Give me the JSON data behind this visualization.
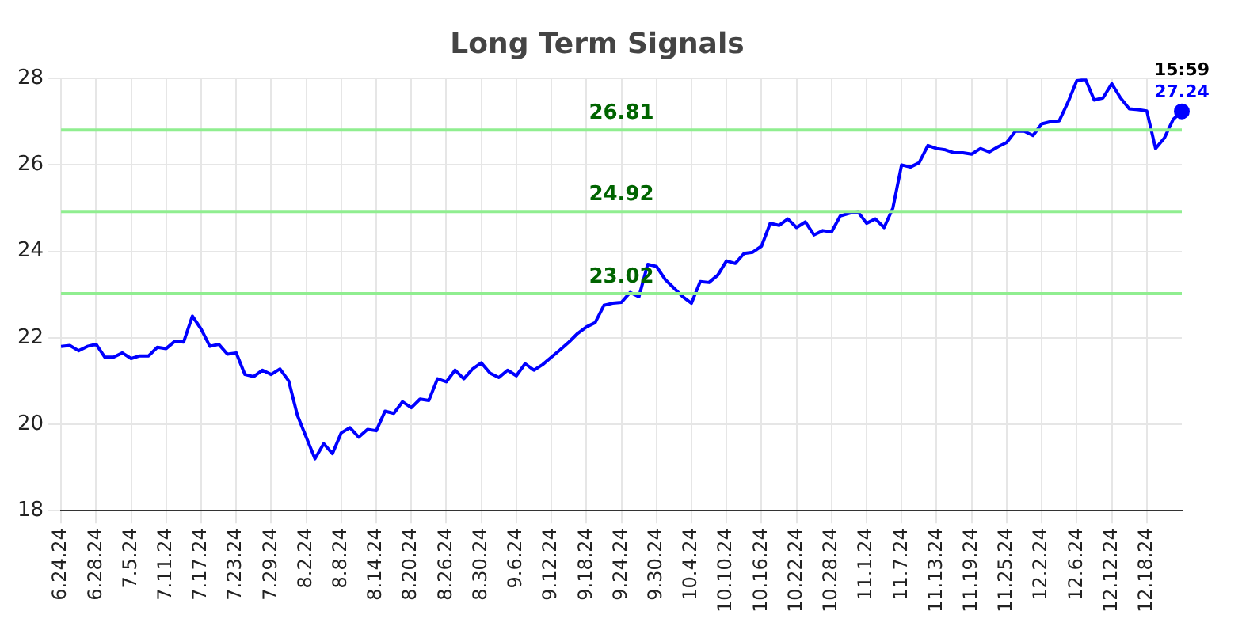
{
  "chart_data": {
    "type": "line",
    "title": "Long Term Signals",
    "categories": [
      "6.24.24",
      null,
      null,
      null,
      "6.28.24",
      null,
      null,
      null,
      "7.5.24",
      null,
      null,
      null,
      "7.11.24",
      null,
      null,
      null,
      "7.17.24",
      null,
      null,
      null,
      "7.23.24",
      null,
      null,
      null,
      "7.29.24",
      null,
      null,
      null,
      "8.2.24",
      null,
      null,
      null,
      "8.8.24",
      null,
      null,
      null,
      "8.14.24",
      null,
      null,
      null,
      "8.20.24",
      null,
      null,
      null,
      "8.26.24",
      null,
      null,
      null,
      "8.30.24",
      null,
      null,
      null,
      "9.6.24",
      null,
      null,
      null,
      "9.12.24",
      null,
      null,
      null,
      "9.18.24",
      null,
      null,
      null,
      "9.24.24",
      null,
      null,
      null,
      "9.30.24",
      null,
      null,
      null,
      "10.4.24",
      null,
      null,
      null,
      "10.10.24",
      null,
      null,
      null,
      "10.16.24",
      null,
      null,
      null,
      "10.22.24",
      null,
      null,
      null,
      "10.28.24",
      null,
      null,
      null,
      "11.1.24",
      null,
      null,
      null,
      "11.7.24",
      null,
      null,
      null,
      "11.13.24",
      null,
      null,
      null,
      "11.19.24",
      null,
      null,
      null,
      "11.25.24",
      null,
      null,
      null,
      "12.2.24",
      null,
      null,
      null,
      "12.6.24",
      null,
      null,
      null,
      "12.12.24",
      null,
      null,
      null,
      "12.18.24",
      null,
      null,
      null,
      null
    ],
    "series": [
      {
        "color": "#0000ff",
        "values": [
          21.8,
          21.82,
          21.7,
          21.8,
          21.85,
          21.55,
          21.55,
          21.65,
          21.52,
          21.58,
          21.58,
          21.78,
          21.75,
          21.92,
          21.9,
          22.5,
          22.2,
          21.8,
          21.85,
          21.62,
          21.65,
          21.15,
          21.1,
          21.25,
          21.15,
          21.28,
          21.0,
          20.2,
          19.7,
          19.2,
          19.55,
          19.32,
          19.8,
          19.92,
          19.7,
          19.88,
          19.85,
          20.3,
          20.25,
          20.52,
          20.38,
          20.58,
          20.55,
          21.05,
          20.98,
          21.25,
          21.05,
          21.28,
          21.42,
          21.18,
          21.08,
          21.25,
          21.12,
          21.4,
          21.25,
          21.38,
          21.55,
          21.72,
          21.9,
          22.1,
          22.25,
          22.35,
          22.75,
          22.8,
          22.82,
          23.05,
          22.95,
          23.7,
          23.65,
          23.35,
          23.15,
          22.95,
          22.8,
          23.3,
          23.28,
          23.45,
          23.78,
          23.72,
          23.95,
          23.98,
          24.12,
          24.65,
          24.6,
          24.75,
          24.55,
          24.68,
          24.38,
          24.48,
          24.45,
          24.82,
          24.88,
          24.92,
          24.65,
          24.75,
          24.55,
          25.0,
          26.0,
          25.95,
          26.05,
          26.45,
          26.38,
          26.35,
          26.28,
          26.28,
          26.25,
          26.38,
          26.3,
          26.42,
          26.52,
          26.78,
          26.78,
          26.68,
          26.95,
          27.0,
          27.02,
          27.45,
          27.95,
          27.98,
          27.5,
          27.55,
          27.88,
          27.55,
          27.3,
          27.28,
          27.25,
          26.38,
          26.62,
          27.05,
          27.24
        ],
        "value_labels": [
          null,
          null,
          null,
          null,
          null,
          null,
          null,
          null,
          null,
          null,
          null,
          null,
          null,
          null,
          null,
          null,
          null,
          null,
          null,
          null,
          null,
          null,
          null,
          null,
          null,
          null,
          null,
          null,
          null,
          null,
          null,
          null,
          null,
          null,
          null,
          null,
          null,
          null,
          null,
          null,
          null,
          null,
          null,
          null,
          null,
          null,
          null,
          null,
          null,
          null,
          null,
          null,
          null,
          null,
          null,
          null,
          null,
          null,
          null,
          null,
          null,
          null,
          null,
          null,
          null,
          null,
          null,
          null,
          null,
          null,
          null,
          null,
          null,
          null,
          null,
          null,
          null,
          null,
          null,
          null,
          null,
          null,
          null,
          null,
          null,
          null,
          null,
          null,
          null,
          null,
          null,
          null,
          null,
          null,
          null,
          null,
          null,
          null,
          null,
          null,
          null,
          null,
          null,
          null,
          null,
          null,
          null,
          null,
          null,
          null,
          null,
          null,
          null,
          null,
          null,
          null,
          null,
          null,
          null,
          null,
          null,
          null,
          null,
          null,
          null,
          null,
          null,
          null,
          "27.24"
        ]
      }
    ],
    "annotations": [
      "15:59"
    ],
    "ylim": [
      18,
      28
    ],
    "yticks": [
      18,
      20,
      22,
      24,
      26,
      28
    ],
    "grid": true,
    "legend": false,
    "ref_lines": [
      {
        "axis": "y",
        "value": 26.81,
        "label": "26.81",
        "color": "#90ee90"
      },
      {
        "axis": "y",
        "value": 24.92,
        "label": "24.92",
        "color": "#90ee90"
      },
      {
        "axis": "y",
        "value": 23.02,
        "label": "23.02",
        "color": "#90ee90"
      }
    ]
  }
}
